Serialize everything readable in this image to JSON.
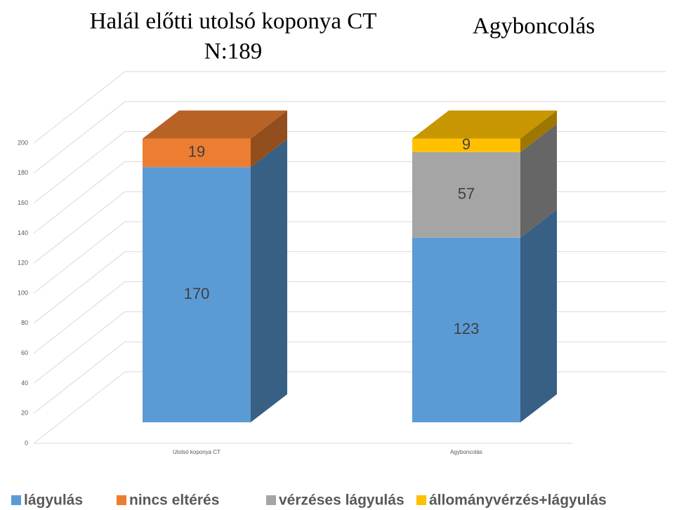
{
  "chart_data": {
    "type": "bar3d_stacked",
    "title": "Halál előtti utolsó koponya CT",
    "subtitle": "N:189",
    "annotation": "Agyboncolás",
    "categories": [
      "Utolsó koponya CT",
      "Agyboncolás"
    ],
    "series": [
      {
        "name": "lágyulás",
        "color": "#5b9bd5",
        "values": [
          170,
          123
        ]
      },
      {
        "name": "nincs eltérés",
        "color": "#ed7d31",
        "values": [
          19,
          null
        ]
      },
      {
        "name": "vérzéses lágyulás",
        "color": "#a5a5a5",
        "values": [
          null,
          57
        ]
      },
      {
        "name": "állományvérzés+lágyulás",
        "color": "#ffc000",
        "values": [
          null,
          9
        ]
      }
    ],
    "ylim": [
      0,
      200
    ],
    "yticks": [
      0,
      20,
      40,
      60,
      80,
      100,
      120,
      140,
      160,
      180,
      200
    ],
    "grid": true,
    "legend": "bottom"
  }
}
